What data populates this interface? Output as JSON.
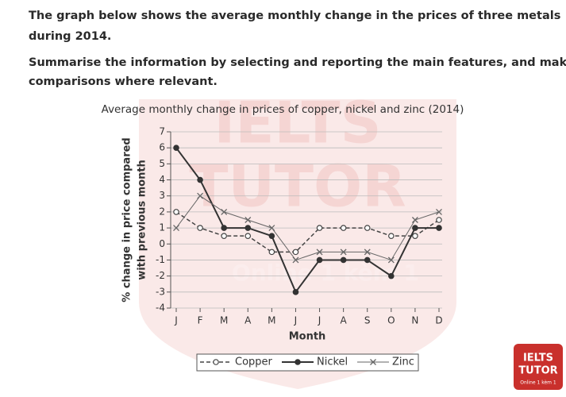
{
  "prompt": {
    "lines": [
      "The graph below shows the average monthly change in the prices of three metals",
      "during 2014.",
      "Summarise the information by selecting and reporting the main features, and make",
      "comparisons where relevant."
    ]
  },
  "watermark": {
    "line1": "IELTS",
    "line2": "TUTOR",
    "line3": "Online 1 kèm 1"
  },
  "chart_data": {
    "type": "line",
    "title": "Average monthly change in prices of copper, nickel and zinc (2014)",
    "y_label": [
      "% change in price compared",
      "with previous month"
    ],
    "x_label": "Month",
    "categories": [
      "J",
      "F",
      "M",
      "A",
      "M",
      "J",
      "J",
      "A",
      "S",
      "O",
      "N",
      "D"
    ],
    "ylim": [
      -4,
      7
    ],
    "yticks": [
      -4,
      -3,
      -2,
      -1,
      0,
      1,
      2,
      3,
      4,
      5,
      6,
      7
    ],
    "grid": true,
    "legend": "bottom",
    "series": [
      {
        "name": "Copper",
        "color": "#444444",
        "dash": "dashed",
        "marker": "open-circle",
        "values": [
          2,
          1,
          0.5,
          0.5,
          -0.5,
          -0.5,
          1,
          1,
          1,
          0.5,
          0.5,
          1.5
        ]
      },
      {
        "name": "Nickel",
        "color": "#333333",
        "dash": "solid",
        "marker": "filled-circle",
        "values": [
          6,
          4,
          1,
          1,
          0.5,
          -3,
          -1,
          -1,
          -1,
          -2,
          1,
          1
        ]
      },
      {
        "name": "Zinc",
        "color": "#666666",
        "dash": "thin",
        "marker": "cross",
        "values": [
          1,
          3,
          2,
          1.5,
          1,
          -1,
          -0.5,
          -0.5,
          -0.5,
          -1,
          1.5,
          2
        ]
      }
    ]
  }
}
